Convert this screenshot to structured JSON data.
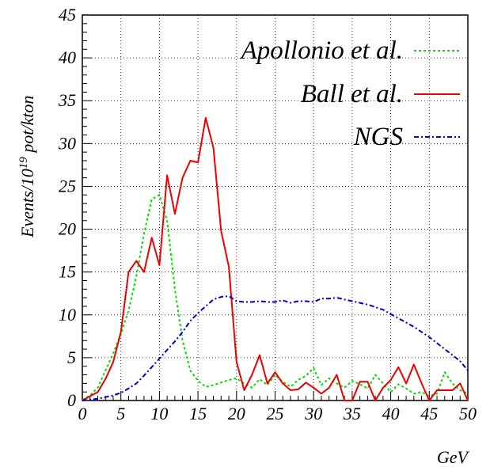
{
  "chart_data": {
    "type": "line",
    "xlabel": "GeV",
    "ylabel_main": "Events/10",
    "ylabel_exp": "19",
    "ylabel_rest": " pot/kton",
    "xlim": [
      0,
      50
    ],
    "ylim": [
      0,
      45
    ],
    "grid": true,
    "legend_placement": "top-right",
    "x_ticks": [
      "0",
      "5",
      "10",
      "15",
      "20",
      "25",
      "30",
      "35",
      "40",
      "45",
      "50"
    ],
    "y_ticks": [
      "0",
      "5",
      "10",
      "15",
      "20",
      "25",
      "30",
      "35",
      "40",
      "45"
    ],
    "series": [
      {
        "name": "Apollonio et al.",
        "color": "#00dd00",
        "dash": "dotted",
        "x": [
          0,
          1,
          2,
          3,
          4,
          5,
          6,
          7,
          8,
          9,
          10,
          11,
          12,
          13,
          14,
          15,
          16,
          17,
          18,
          19,
          20,
          21,
          22,
          23,
          24,
          25,
          26,
          27,
          28,
          29,
          30,
          31,
          32,
          33,
          34,
          35,
          36,
          37,
          38,
          39,
          40,
          41,
          42,
          43,
          44,
          45,
          46,
          47,
          48,
          49,
          50
        ],
        "values": [
          0.1,
          0.6,
          1.5,
          3.5,
          5.5,
          7.8,
          10.5,
          14.5,
          19.5,
          23.5,
          24.0,
          21.0,
          13.0,
          7.0,
          3.5,
          2.3,
          1.6,
          1.8,
          2.1,
          2.4,
          2.6,
          2.0,
          1.5,
          2.5,
          1.8,
          3.0,
          2.2,
          1.6,
          2.4,
          2.9,
          3.8,
          1.8,
          2.6,
          2.0,
          1.5,
          2.3,
          1.9,
          1.4,
          3.0,
          2.0,
          1.0,
          1.9,
          1.4,
          0.8,
          1.0,
          0.5,
          0.8,
          3.3,
          2.0,
          1.2,
          0.8
        ]
      },
      {
        "name": "Ball et al.",
        "color": "#ee0000",
        "dash": "solid",
        "x": [
          0,
          1,
          2,
          3,
          4,
          5,
          6,
          7,
          8,
          9,
          10,
          11,
          12,
          13,
          14,
          15,
          16,
          17,
          18,
          19,
          20,
          21,
          22,
          23,
          24,
          25,
          26,
          27,
          28,
          29,
          30,
          31,
          32,
          33,
          34,
          35,
          36,
          37,
          38,
          39,
          40,
          41,
          42,
          43,
          44,
          45,
          46,
          47,
          48,
          49,
          50
        ],
        "values": [
          0,
          0.5,
          1.0,
          2.5,
          4.5,
          8.0,
          15.0,
          16.3,
          15.0,
          19.0,
          15.8,
          26.3,
          21.8,
          26.0,
          28.0,
          27.8,
          33.0,
          29.5,
          19.8,
          15.6,
          4.5,
          1.2,
          3.0,
          5.3,
          2.0,
          3.3,
          2.0,
          1.2,
          1.3,
          2.1,
          1.5,
          0.8,
          1.5,
          3.0,
          0,
          0,
          2.2,
          2.2,
          0,
          1.5,
          2.4,
          3.9,
          2.0,
          4.2,
          2.0,
          0,
          1.2,
          1.2,
          1.2,
          2.0,
          0
        ]
      },
      {
        "name": "NGS",
        "color": "#0000cc",
        "dash": "dashdot",
        "x": [
          0,
          1,
          2,
          3,
          4,
          5,
          6,
          7,
          8,
          9,
          10,
          11,
          12,
          13,
          14,
          15,
          16,
          17,
          18,
          19,
          20,
          21,
          22,
          23,
          24,
          25,
          26,
          27,
          28,
          29,
          30,
          31,
          32,
          33,
          34,
          35,
          36,
          37,
          38,
          39,
          40,
          41,
          42,
          43,
          44,
          45,
          46,
          47,
          48,
          49,
          50
        ],
        "values": [
          0,
          0.1,
          0.2,
          0.4,
          0.6,
          0.9,
          1.4,
          2.0,
          2.9,
          3.9,
          4.9,
          5.9,
          6.9,
          8.0,
          9.3,
          10.2,
          11.0,
          11.8,
          12.1,
          12.2,
          11.6,
          11.5,
          11.5,
          11.6,
          11.5,
          11.5,
          11.7,
          11.4,
          11.6,
          11.6,
          11.5,
          11.9,
          11.9,
          12.0,
          11.8,
          11.6,
          11.4,
          11.2,
          10.9,
          10.6,
          10.1,
          9.6,
          9.1,
          8.6,
          8.0,
          7.4,
          6.7,
          6.0,
          5.3,
          4.6,
          3.5
        ]
      }
    ]
  }
}
